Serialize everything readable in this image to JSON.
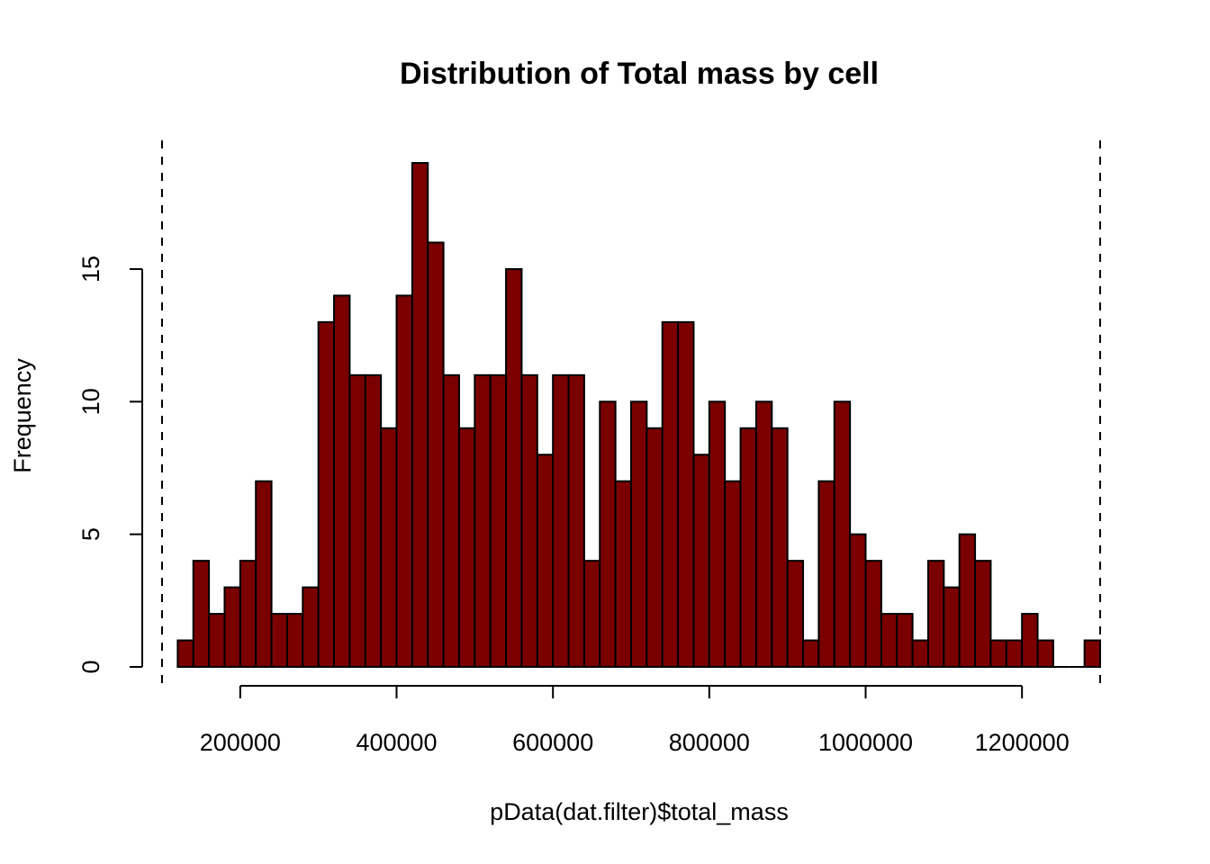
{
  "chart_data": {
    "type": "bar",
    "title": "Distribution of Total mass by cell",
    "xlabel": "pData(dat.filter)$total_mass",
    "ylabel": "Frequency",
    "bin_width": 20000,
    "bin_start": 120000,
    "values": [
      1,
      4,
      2,
      3,
      4,
      7,
      2,
      2,
      3,
      13,
      14,
      11,
      11,
      9,
      14,
      19,
      16,
      11,
      9,
      11,
      11,
      15,
      11,
      8,
      11,
      11,
      4,
      10,
      7,
      10,
      9,
      13,
      13,
      8,
      10,
      7,
      9,
      10,
      9,
      4,
      1,
      7,
      10,
      5,
      4,
      2,
      2,
      1,
      4,
      3,
      5,
      4,
      1,
      1,
      2,
      1,
      0,
      0,
      1
    ],
    "xlim": [
      100000,
      1300000
    ],
    "ylim": [
      0,
      19
    ],
    "x_ticks": [
      200000,
      400000,
      600000,
      800000,
      1000000,
      1200000
    ],
    "x_tick_labels": [
      "200000",
      "400000",
      "600000",
      "800000",
      "1000000",
      "1200000"
    ],
    "y_ticks": [
      0,
      5,
      10,
      15
    ],
    "y_tick_labels": [
      "0",
      "5",
      "10",
      "15"
    ],
    "vlines": [
      100000,
      1300000
    ],
    "vline_style": "dashed",
    "bar_color": "#7a0000",
    "border_color": "#000000",
    "grid": false,
    "legend": "none"
  }
}
